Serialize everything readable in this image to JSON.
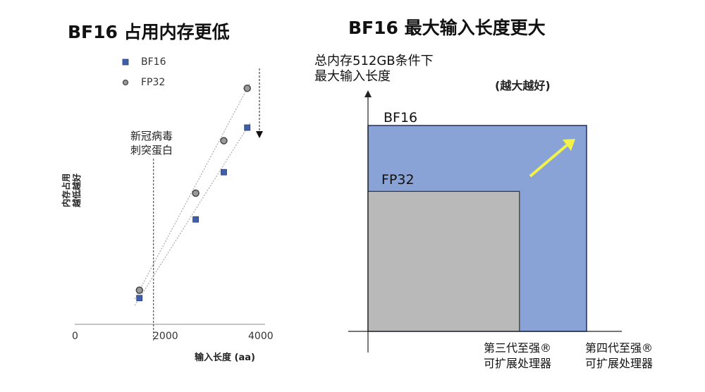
{
  "chart_data": [
    {
      "type": "scatter",
      "title": "BF16 占用内存更低",
      "xlabel": "输入长度 (aa)",
      "ylabel_lines": [
        "内存占用",
        "越低越好"
      ],
      "xlim": [
        0,
        4000
      ],
      "x_ticks": [
        "0",
        "2000",
        "4000"
      ],
      "legend": "top-left",
      "grid": false,
      "series": [
        {
          "name": "BF16",
          "marker": "square",
          "color": "#3f5fa8",
          "x": [
            1350,
            2550,
            3150,
            3650
          ],
          "y": [
            0.1,
            0.4,
            0.58,
            0.75
          ]
        },
        {
          "name": "FP32",
          "marker": "circle",
          "color": "#9a9a9a",
          "x": [
            1350,
            2550,
            3150,
            3650
          ],
          "y": [
            0.13,
            0.5,
            0.7,
            0.9
          ]
        }
      ],
      "annotation": {
        "x": 1650,
        "lines": [
          "新冠病毒",
          "刺突蛋白"
        ]
      }
    },
    {
      "type": "bar",
      "title": "BF16 最大输入长度更大",
      "ylabel_lines": [
        "总内存512GB条件下",
        "最大输入长度"
      ],
      "note": "(越大越好)",
      "categories": [
        [
          "第三代至强®",
          "可扩展处理器"
        ],
        [
          "第四代至强®",
          "可扩展处理器"
        ]
      ],
      "series": [
        {
          "name": "FP32",
          "category_index": 0,
          "value": 0.68,
          "color": "#b9b9b9"
        },
        {
          "name": "BF16",
          "category_index": 1,
          "value": 1.0,
          "color": "#8aa3d7"
        }
      ],
      "arrow_color": "#f2f24a"
    }
  ]
}
